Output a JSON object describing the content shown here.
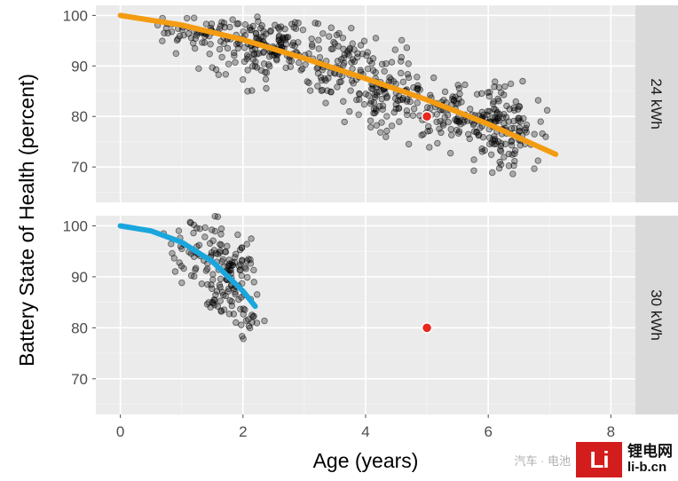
{
  "chart_data": {
    "type": "scatter",
    "xlabel": "Age (years)",
    "ylabel": "Battery State of Health (percent)",
    "xlim": [
      -0.4,
      8.4
    ],
    "x_ticks": [
      0,
      2,
      4,
      6,
      8
    ],
    "panels": [
      {
        "strip": "24 kWh",
        "ylim": [
          63,
          102
        ],
        "y_ticks": [
          70,
          80,
          90,
          100
        ],
        "trend_color": "#f39c12",
        "trend_line": {
          "x": [
            0,
            1,
            2,
            3,
            4,
            5,
            6,
            7.1
          ],
          "y": [
            100,
            98.1,
            95.2,
            91.5,
            87.5,
            83.3,
            78.5,
            72.5
          ]
        },
        "cloud_seed": 7,
        "clusters": [
          {
            "cx": 1.2,
            "cy": 96.5,
            "sx": 0.3,
            "sy": 1.6,
            "n": 55
          },
          {
            "cx": 2.4,
            "cy": 93.5,
            "sx": 0.45,
            "sy": 3.0,
            "n": 170
          },
          {
            "cx": 3.6,
            "cy": 90.0,
            "sx": 0.3,
            "sy": 3.2,
            "n": 80
          },
          {
            "cx": 4.4,
            "cy": 85.0,
            "sx": 0.35,
            "sy": 4.0,
            "n": 110
          },
          {
            "cx": 5.4,
            "cy": 80.5,
            "sx": 0.35,
            "sy": 3.0,
            "n": 90
          },
          {
            "cx": 6.2,
            "cy": 77.5,
            "sx": 0.3,
            "sy": 4.0,
            "n": 140
          }
        ],
        "highlight_point": {
          "x": 5.0,
          "y": 80,
          "color": "#e8271e"
        }
      },
      {
        "strip": "30 kWh",
        "ylim": [
          63,
          102
        ],
        "y_ticks": [
          70,
          80,
          90,
          100
        ],
        "trend_color": "#1aa6dd",
        "trend_line": {
          "x": [
            0,
            0.5,
            1.0,
            1.5,
            2.0,
            2.2
          ],
          "y": [
            100,
            99.0,
            96.8,
            93.0,
            87.2,
            84.2
          ]
        },
        "cloud_seed": 19,
        "clusters": [
          {
            "cx": 1.2,
            "cy": 96.0,
            "sx": 0.25,
            "sy": 3.0,
            "n": 40
          },
          {
            "cx": 1.75,
            "cy": 90.0,
            "sx": 0.22,
            "sy": 4.5,
            "n": 110
          },
          {
            "cx": 2.05,
            "cy": 82.5,
            "sx": 0.12,
            "sy": 3.0,
            "n": 25
          }
        ],
        "highlight_point": {
          "x": 5.0,
          "y": 80,
          "color": "#e8271e"
        }
      }
    ]
  },
  "watermark": {
    "social": "汽车 · 电池",
    "logo": "Li",
    "brand": "锂电网",
    "url": "li-b.cn"
  }
}
